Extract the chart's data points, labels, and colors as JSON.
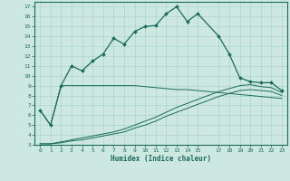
{
  "xlabel": "Humidex (Indice chaleur)",
  "bg_color": "#cce8e0",
  "grid_color": "#aad4cc",
  "line_color": "#1a6b5a",
  "xlim": [
    -0.5,
    23.5
  ],
  "ylim": [
    3,
    17.5
  ],
  "xticks": [
    0,
    1,
    2,
    3,
    4,
    5,
    6,
    7,
    8,
    9,
    10,
    11,
    12,
    13,
    14,
    15,
    17,
    18,
    19,
    20,
    21,
    22,
    23
  ],
  "yticks": [
    3,
    4,
    5,
    6,
    7,
    8,
    9,
    10,
    11,
    12,
    13,
    14,
    15,
    16,
    17
  ],
  "main_x": [
    0,
    1,
    2,
    3,
    4,
    5,
    6,
    7,
    8,
    9,
    10,
    11,
    12,
    13,
    14,
    15,
    17,
    18,
    19,
    20,
    21,
    22,
    23
  ],
  "main_y": [
    6.5,
    5.0,
    9.0,
    11.0,
    10.5,
    11.5,
    12.2,
    13.8,
    13.2,
    14.5,
    15.0,
    15.1,
    16.3,
    17.0,
    15.5,
    16.3,
    14.0,
    12.2,
    9.8,
    9.4,
    9.3,
    9.3,
    8.5
  ],
  "flat_x": [
    0,
    1,
    2,
    3,
    4,
    5,
    6,
    7,
    8,
    9,
    10,
    11,
    12,
    13,
    14,
    15,
    17,
    18,
    19,
    20,
    21,
    22,
    23
  ],
  "flat_y": [
    6.5,
    5.0,
    9.0,
    9.0,
    9.0,
    9.0,
    9.0,
    9.0,
    9.0,
    9.0,
    8.9,
    8.8,
    8.7,
    8.6,
    8.6,
    8.5,
    8.3,
    8.2,
    8.1,
    8.0,
    7.9,
    7.8,
    7.7
  ],
  "line2_x": [
    0,
    1,
    2,
    3,
    4,
    5,
    6,
    7,
    8,
    9,
    10,
    11,
    12,
    13,
    14,
    15,
    17,
    18,
    19,
    20,
    21,
    22,
    23
  ],
  "line2_y": [
    3.1,
    3.1,
    3.3,
    3.5,
    3.7,
    3.9,
    4.1,
    4.3,
    4.6,
    5.0,
    5.4,
    5.8,
    6.3,
    6.8,
    7.2,
    7.6,
    8.4,
    8.7,
    9.0,
    9.1,
    8.9,
    8.8,
    8.3
  ],
  "line3_x": [
    0,
    1,
    2,
    3,
    4,
    5,
    6,
    7,
    8,
    9,
    10,
    11,
    12,
    13,
    14,
    15,
    17,
    18,
    19,
    20,
    21,
    22,
    23
  ],
  "line3_y": [
    3.1,
    3.1,
    3.2,
    3.4,
    3.5,
    3.7,
    3.9,
    4.1,
    4.3,
    4.7,
    5.0,
    5.4,
    5.9,
    6.3,
    6.7,
    7.1,
    7.9,
    8.2,
    8.5,
    8.6,
    8.5,
    8.4,
    8.0
  ]
}
